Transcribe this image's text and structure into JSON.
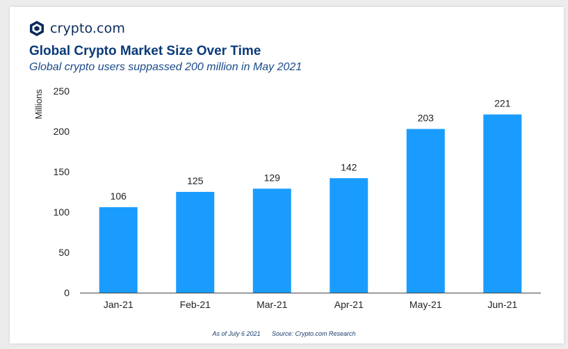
{
  "brand": {
    "name": "crypto.com",
    "icon": "crypto-com-logo-icon"
  },
  "header": {
    "title": "Global Crypto Market Size Over Time",
    "subtitle": "Global crypto users suppassed 200 million in May 2021"
  },
  "footer": {
    "date_note": "As of July 6 2021",
    "source": "Source: Crypto.com Research"
  },
  "colors": {
    "bar": "#1a9cff",
    "title": "#0a3a78",
    "text": "#222222"
  },
  "chart_data": {
    "type": "bar",
    "title": "Global Crypto Market Size Over Time",
    "subtitle": "Global crypto users suppassed 200 million in May 2021",
    "xlabel": "",
    "ylabel": "Millions",
    "categories": [
      "Jan-21",
      "Feb-21",
      "Mar-21",
      "Apr-21",
      "May-21",
      "Jun-21"
    ],
    "values": [
      106,
      125,
      129,
      142,
      203,
      221
    ],
    "data_labels": [
      "106",
      "125",
      "129",
      "142",
      "203",
      "221"
    ],
    "ylim": [
      0,
      250
    ],
    "yticks": [
      0,
      50,
      100,
      150,
      200,
      250
    ],
    "grid": false,
    "legend": "none"
  }
}
